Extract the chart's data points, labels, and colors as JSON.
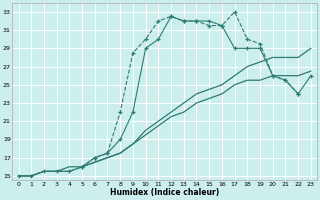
{
  "xlabel": "Humidex (Indice chaleur)",
  "bg_color": "#cceeed",
  "grid_color": "#ffffff",
  "line_color": "#2e7b72",
  "xlim": [
    -0.5,
    23.5
  ],
  "ylim": [
    14.5,
    34.0
  ],
  "xticks": [
    0,
    1,
    2,
    3,
    4,
    5,
    6,
    7,
    8,
    9,
    10,
    11,
    12,
    13,
    14,
    15,
    16,
    17,
    18,
    19,
    20,
    21,
    22,
    23
  ],
  "yticks": [
    15,
    17,
    19,
    21,
    23,
    25,
    27,
    29,
    31,
    33
  ],
  "line1_x": [
    0,
    1,
    2,
    3,
    4,
    5,
    6,
    7,
    8,
    9,
    10,
    11,
    12,
    13,
    14,
    15,
    16,
    17,
    18,
    19,
    20,
    21,
    22,
    23
  ],
  "line1_y": [
    15,
    15,
    15.5,
    15.5,
    15.5,
    16,
    16.5,
    17,
    17.5,
    18.5,
    19.5,
    20.5,
    21.5,
    22,
    23,
    23.5,
    24,
    25,
    25.5,
    25.5,
    26,
    26,
    26,
    26.5
  ],
  "line2_x": [
    0,
    1,
    2,
    3,
    4,
    5,
    6,
    7,
    8,
    9,
    10,
    11,
    12,
    13,
    14,
    15,
    16,
    17,
    18,
    19,
    20,
    21,
    22,
    23
  ],
  "line2_y": [
    15,
    15,
    15.5,
    15.5,
    16,
    16,
    16.5,
    17,
    17.5,
    18.5,
    20,
    21,
    22,
    23,
    24,
    24.5,
    25,
    26,
    27,
    27.5,
    28,
    28,
    28,
    29
  ],
  "curve_dashed_x": [
    0,
    1,
    2,
    3,
    4,
    5,
    6,
    7,
    8,
    9,
    10,
    11,
    12,
    13,
    14,
    15,
    16,
    17,
    18,
    19,
    20,
    21,
    22
  ],
  "curve_dashed_y": [
    15,
    15,
    15.5,
    15.5,
    15.5,
    16,
    17,
    17.5,
    22,
    28.5,
    30,
    32,
    32.5,
    32,
    32,
    31.5,
    31.5,
    33,
    30,
    29.5,
    26,
    25.5,
    24
  ],
  "curve_main_x": [
    5,
    6,
    7,
    8,
    9,
    10,
    11,
    12,
    13,
    14,
    15,
    16,
    17,
    18,
    19,
    20,
    21,
    22,
    23
  ],
  "curve_main_y": [
    16,
    17,
    17.5,
    19,
    22,
    29,
    30,
    32.5,
    32,
    32,
    32,
    31.5,
    29,
    29,
    29,
    26,
    25.5,
    24,
    26
  ]
}
